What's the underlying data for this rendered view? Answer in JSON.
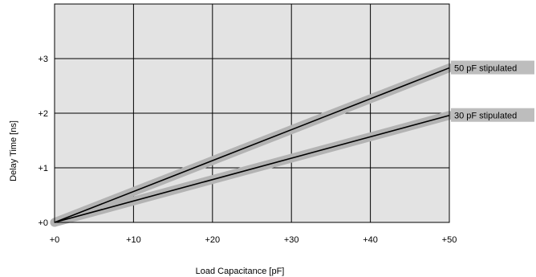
{
  "chart_data": {
    "type": "line",
    "xlabel": "Load Capacitance [pF]",
    "ylabel": "Delay Time [ns]",
    "xlim": [
      0,
      50
    ],
    "ylim": [
      0,
      4
    ],
    "x_ticks": [
      {
        "value": 0,
        "label": "+0"
      },
      {
        "value": 10,
        "label": "+10"
      },
      {
        "value": 20,
        "label": "+20"
      },
      {
        "value": 30,
        "label": "+30"
      },
      {
        "value": 40,
        "label": "+40"
      },
      {
        "value": 50,
        "label": "+50"
      }
    ],
    "y_ticks": [
      {
        "value": 0,
        "label": "+0"
      },
      {
        "value": 1,
        "label": "+1"
      },
      {
        "value": 2,
        "label": "+2"
      },
      {
        "value": 3,
        "label": "+3"
      }
    ],
    "grid": true,
    "series": [
      {
        "name": "50 pF stipulated",
        "x": [
          0,
          50
        ],
        "y": [
          0,
          2.83
        ]
      },
      {
        "name": "30 pF stipulated",
        "x": [
          0,
          50
        ],
        "y": [
          0,
          1.96
        ]
      }
    ],
    "colors": {
      "plot_background": "#e3e3e3",
      "grid": "#000000",
      "line": "#000000",
      "halo": "#b3b3b3",
      "label_box": "#bdbdbd"
    }
  }
}
